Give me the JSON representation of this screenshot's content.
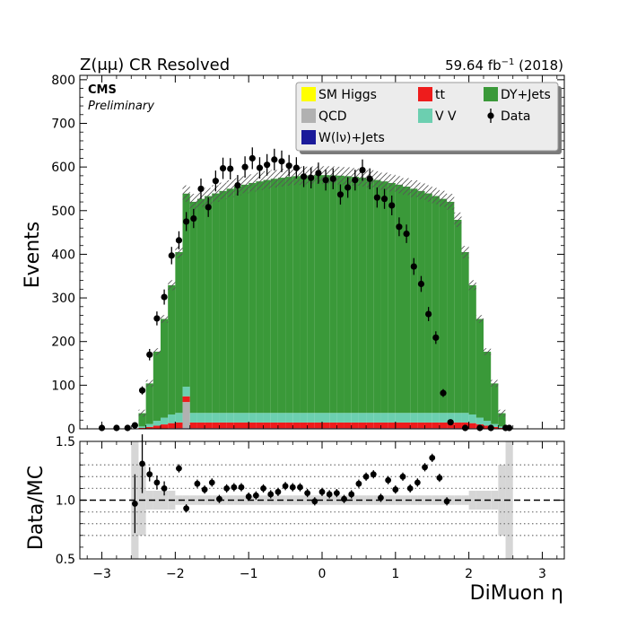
{
  "chart_data": {
    "type": "stacked-histogram-with-ratio",
    "title_left": "Z(μμ) CR Resolved",
    "title_right": "59.64 fb",
    "lumi_exponent": "−1",
    "title_right_suffix": " (2018)",
    "cms_label": "CMS",
    "cms_sublabel": "Preliminary",
    "xlabel": "DiMuon η",
    "ylabel": "Events",
    "ratio_ylabel": "Data/MC",
    "xlim": [
      -3.3,
      3.3
    ],
    "ylim": [
      0,
      810
    ],
    "ratio_ylim": [
      0.5,
      1.5
    ],
    "xticks": [
      -3,
      -2,
      -1,
      0,
      1,
      2,
      3
    ],
    "yticks": [
      0,
      100,
      200,
      300,
      400,
      500,
      600,
      700,
      800
    ],
    "ratio_yticks": [
      0.5,
      1.0,
      1.5
    ],
    "ratio_dotted_lines": [
      0.7,
      0.8,
      0.9,
      1.1,
      1.2,
      1.3
    ],
    "ratio_reference": 1.0,
    "legend": [
      {
        "label": "SM Higgs",
        "color": "#ffff00",
        "kind": "box"
      },
      {
        "label": "tt",
        "color": "#ee1c1c",
        "kind": "box"
      },
      {
        "label": "DY+Jets",
        "color": "#3a9939",
        "kind": "box"
      },
      {
        "label": "QCD",
        "color": "#b1b1b1",
        "kind": "box"
      },
      {
        "label": "V V",
        "color": "#6ccfb0",
        "kind": "box"
      },
      {
        "label": "Data",
        "color": "#000000",
        "kind": "marker"
      },
      {
        "label": "W(lν)+Jets",
        "color": "#1a1a9a",
        "kind": "box"
      }
    ],
    "bins": {
      "start": -2.6,
      "width": 0.1,
      "count": 52
    },
    "data_points": [
      {
        "x": -3.0,
        "y": 0
      },
      {
        "x": -2.8,
        "y": 0
      },
      {
        "x": -2.65,
        "y": 2
      },
      {
        "x": -2.55,
        "y": 8
      },
      {
        "x": -2.45,
        "y": 88
      },
      {
        "x": -2.35,
        "y": 170
      },
      {
        "x": -2.25,
        "y": 253
      },
      {
        "x": -2.15,
        "y": 302
      },
      {
        "x": -2.05,
        "y": 397
      },
      {
        "x": -1.95,
        "y": 432
      },
      {
        "x": -1.85,
        "y": 475
      },
      {
        "x": -1.75,
        "y": 482
      },
      {
        "x": -1.65,
        "y": 550
      },
      {
        "x": -1.55,
        "y": 508
      },
      {
        "x": -1.45,
        "y": 568
      },
      {
        "x": -1.35,
        "y": 597
      },
      {
        "x": -1.25,
        "y": 596
      },
      {
        "x": -1.15,
        "y": 558
      },
      {
        "x": -1.05,
        "y": 600
      },
      {
        "x": -0.95,
        "y": 620
      },
      {
        "x": -0.85,
        "y": 598
      },
      {
        "x": -0.75,
        "y": 605
      },
      {
        "x": -0.65,
        "y": 617
      },
      {
        "x": -0.55,
        "y": 613
      },
      {
        "x": -0.45,
        "y": 603
      },
      {
        "x": -0.35,
        "y": 598
      },
      {
        "x": -0.25,
        "y": 578
      },
      {
        "x": -0.15,
        "y": 575
      },
      {
        "x": -0.05,
        "y": 586
      },
      {
        "x": 0.05,
        "y": 570
      },
      {
        "x": 0.15,
        "y": 573
      },
      {
        "x": 0.25,
        "y": 537
      },
      {
        "x": 0.35,
        "y": 553
      },
      {
        "x": 0.45,
        "y": 570
      },
      {
        "x": 0.55,
        "y": 593
      },
      {
        "x": 0.65,
        "y": 573
      },
      {
        "x": 0.75,
        "y": 530
      },
      {
        "x": 0.85,
        "y": 527
      },
      {
        "x": 0.95,
        "y": 512
      },
      {
        "x": 1.05,
        "y": 463
      },
      {
        "x": 1.15,
        "y": 447
      },
      {
        "x": 1.25,
        "y": 372
      },
      {
        "x": 1.35,
        "y": 332
      },
      {
        "x": 1.45,
        "y": 263
      },
      {
        "x": 1.55,
        "y": 209
      },
      {
        "x": 1.65,
        "y": 82
      },
      {
        "x": 1.75,
        "y": 15
      },
      {
        "x": 1.95,
        "y": 0
      },
      {
        "x": 2.15,
        "y": 0
      },
      {
        "x": 2.3,
        "y": 0
      },
      {
        "x": 2.5,
        "y": 0
      },
      {
        "x": 2.55,
        "y": 0
      }
    ],
    "ratio_points": [
      {
        "x": -2.55,
        "y": 0.97
      },
      {
        "x": -2.45,
        "y": 1.31
      },
      {
        "x": -2.35,
        "y": 1.22
      },
      {
        "x": -2.25,
        "y": 1.15
      },
      {
        "x": -2.15,
        "y": 1.1
      },
      {
        "x": -1.95,
        "y": 1.27
      },
      {
        "x": -1.85,
        "y": 0.93
      },
      {
        "x": -1.7,
        "y": 1.14
      },
      {
        "x": -1.6,
        "y": 1.09
      },
      {
        "x": -1.5,
        "y": 1.15
      },
      {
        "x": -1.4,
        "y": 1.01
      },
      {
        "x": -1.3,
        "y": 1.1
      },
      {
        "x": -1.2,
        "y": 1.11
      },
      {
        "x": -1.1,
        "y": 1.11
      },
      {
        "x": -1.0,
        "y": 1.03
      },
      {
        "x": -0.9,
        "y": 1.04
      },
      {
        "x": -0.8,
        "y": 1.1
      },
      {
        "x": -0.7,
        "y": 1.05
      },
      {
        "x": -0.6,
        "y": 1.07
      },
      {
        "x": -0.5,
        "y": 1.12
      },
      {
        "x": -0.4,
        "y": 1.11
      },
      {
        "x": -0.3,
        "y": 1.11
      },
      {
        "x": -0.2,
        "y": 1.06
      },
      {
        "x": -0.1,
        "y": 0.99
      },
      {
        "x": 0.0,
        "y": 1.07
      },
      {
        "x": 0.1,
        "y": 1.05
      },
      {
        "x": 0.2,
        "y": 1.06
      },
      {
        "x": 0.3,
        "y": 1.01
      },
      {
        "x": 0.4,
        "y": 1.05
      },
      {
        "x": 0.5,
        "y": 1.14
      },
      {
        "x": 0.6,
        "y": 1.2
      },
      {
        "x": 0.7,
        "y": 1.22
      },
      {
        "x": 0.8,
        "y": 1.02
      },
      {
        "x": 0.9,
        "y": 1.17
      },
      {
        "x": 1.0,
        "y": 1.09
      },
      {
        "x": 1.1,
        "y": 1.2
      },
      {
        "x": 1.2,
        "y": 1.1
      },
      {
        "x": 1.3,
        "y": 1.15
      },
      {
        "x": 1.4,
        "y": 1.28
      },
      {
        "x": 1.5,
        "y": 1.36
      },
      {
        "x": 1.6,
        "y": 1.19
      },
      {
        "x": 1.7,
        "y": 0.99
      }
    ]
  }
}
